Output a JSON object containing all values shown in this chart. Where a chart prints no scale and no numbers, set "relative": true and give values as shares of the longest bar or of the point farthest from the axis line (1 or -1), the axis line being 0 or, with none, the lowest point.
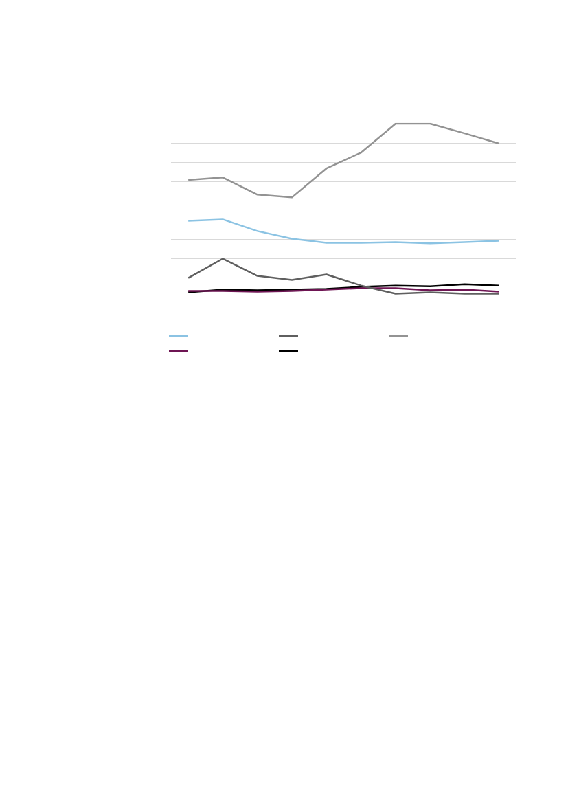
{
  "chart_data": {
    "type": "line",
    "relative": true,
    "grid": "y",
    "categories": [
      null,
      null,
      null,
      null,
      null,
      null,
      null,
      null,
      null,
      null
    ],
    "series": [
      {
        "color": "#8bc3e3",
        "values": [
          0.44,
          0.448,
          0.381,
          0.337,
          0.313,
          0.313,
          0.317,
          0.31,
          0.317,
          0.325
        ]
      },
      {
        "color": "#5f5f5f",
        "values": [
          0.111,
          0.222,
          0.123,
          0.099,
          0.131,
          0.067,
          0.02,
          0.028,
          0.02,
          0.02
        ]
      },
      {
        "color": "#939393",
        "values": [
          0.675,
          0.69,
          0.591,
          0.575,
          0.742,
          0.833,
          1,
          1,
          0.944,
          0.885
        ]
      },
      {
        "color": "#6e1553",
        "values": [
          0.036,
          0.036,
          0.032,
          0.036,
          0.044,
          0.052,
          0.052,
          0.04,
          0.044,
          0.032
        ]
      },
      {
        "color": "#000000",
        "values": [
          0.028,
          0.044,
          0.04,
          0.044,
          0.048,
          0.06,
          0.067,
          0.063,
          0.075,
          0.067
        ]
      }
    ]
  }
}
